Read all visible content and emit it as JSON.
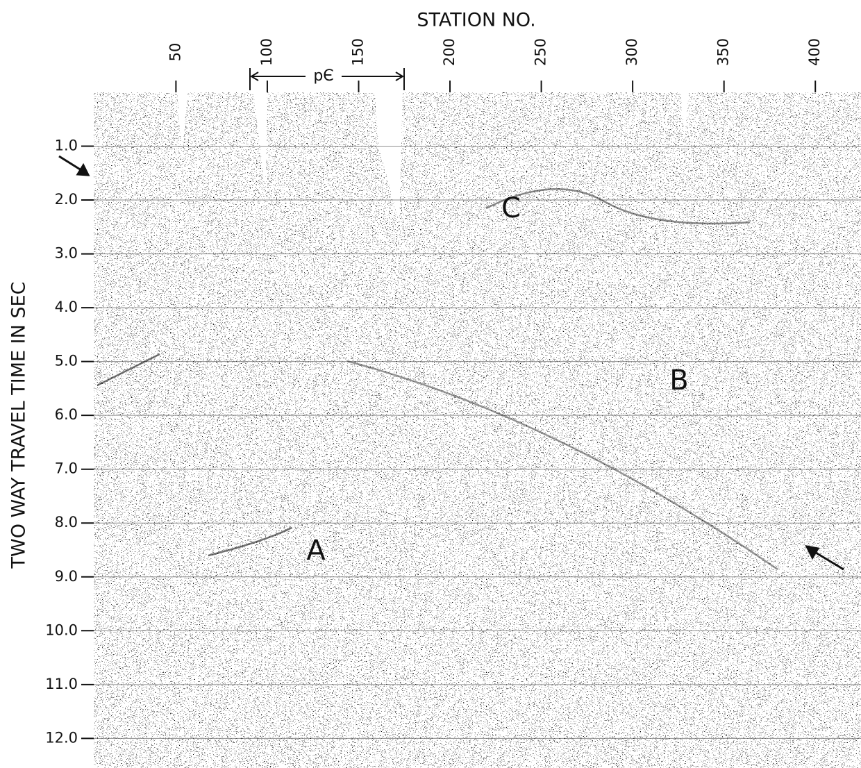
{
  "chart_data": {
    "type": "seismic",
    "xlabel": "STATION NO.",
    "ylabel": "TWO WAY TRAVEL TIME IN SEC",
    "xlim": [
      5,
      425
    ],
    "xticks": [
      50,
      100,
      150,
      200,
      250,
      300,
      350,
      400
    ],
    "ylim": [
      0,
      12.55
    ],
    "yticks": [
      {
        "value": 1,
        "label": "1.0"
      },
      {
        "value": 2,
        "label": "2.0"
      },
      {
        "value": 3,
        "label": "3.0"
      },
      {
        "value": 4,
        "label": "4.0"
      },
      {
        "value": 5,
        "label": "5.0"
      },
      {
        "value": 6,
        "label": "6.0"
      },
      {
        "value": 7,
        "label": "7.0"
      },
      {
        "value": 8,
        "label": "8.0"
      },
      {
        "value": 9,
        "label": "9.0"
      },
      {
        "value": 10,
        "label": "10.0"
      },
      {
        "value": 11,
        "label": "11.0"
      },
      {
        "value": 12,
        "label": "12.0"
      }
    ],
    "y_inverted": true,
    "grid": true,
    "annotations": [
      "pЄ",
      "A",
      "B",
      "C"
    ]
  }
}
